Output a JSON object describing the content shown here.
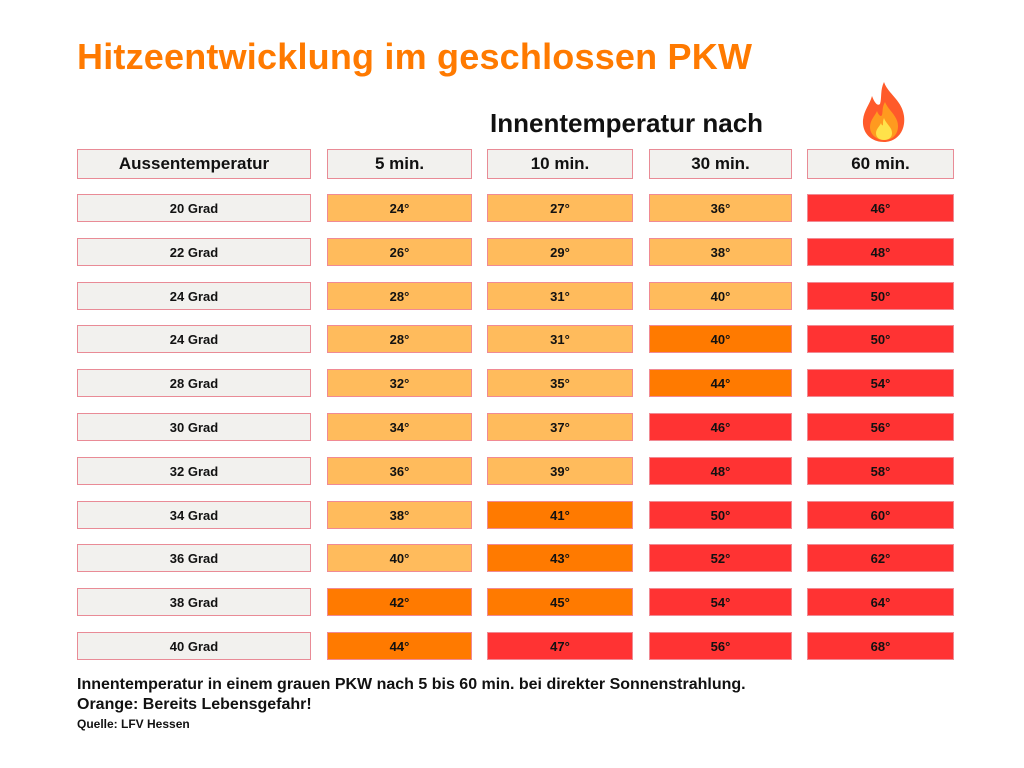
{
  "title": "Hitzeentwicklung im geschlossen PKW",
  "subheading": "Innentemperatur nach",
  "icon": "fire-icon",
  "colors": {
    "title": "#ff7a00",
    "light_orange": "#ffbb5c",
    "orange": "#ff7a00",
    "red": "#ff3333",
    "header_bg": "#f2f1ee",
    "border": "#e98b96"
  },
  "chart_data": {
    "type": "table",
    "title": "Hitzeentwicklung im geschlossen PKW",
    "column_group_label": "Innentemperatur nach",
    "row_header": "Aussentemperatur",
    "columns": [
      "5 min.",
      "10 min.",
      "30 min.",
      "60 min."
    ],
    "rows": [
      {
        "label": "20 Grad",
        "cells": [
          {
            "text": "24°",
            "level": "light"
          },
          {
            "text": "27°",
            "level": "light"
          },
          {
            "text": "36°",
            "level": "light"
          },
          {
            "text": "46°",
            "level": "red"
          }
        ]
      },
      {
        "label": "22 Grad",
        "cells": [
          {
            "text": "26°",
            "level": "light"
          },
          {
            "text": "29°",
            "level": "light"
          },
          {
            "text": "38°",
            "level": "light"
          },
          {
            "text": "48°",
            "level": "red"
          }
        ]
      },
      {
        "label": "24 Grad",
        "cells": [
          {
            "text": "28°",
            "level": "light"
          },
          {
            "text": "31°",
            "level": "light"
          },
          {
            "text": "40°",
            "level": "light"
          },
          {
            "text": "50°",
            "level": "red"
          }
        ]
      },
      {
        "label": "24 Grad",
        "cells": [
          {
            "text": "28°",
            "level": "light"
          },
          {
            "text": "31°",
            "level": "light"
          },
          {
            "text": "40°",
            "level": "orange"
          },
          {
            "text": "50°",
            "level": "red"
          }
        ]
      },
      {
        "label": "28 Grad",
        "cells": [
          {
            "text": "32°",
            "level": "light"
          },
          {
            "text": "35°",
            "level": "light"
          },
          {
            "text": "44°",
            "level": "orange"
          },
          {
            "text": "54°",
            "level": "red"
          }
        ]
      },
      {
        "label": "30 Grad",
        "cells": [
          {
            "text": "34°",
            "level": "light"
          },
          {
            "text": "37°",
            "level": "light"
          },
          {
            "text": "46°",
            "level": "red"
          },
          {
            "text": "56°",
            "level": "red"
          }
        ]
      },
      {
        "label": "32 Grad",
        "cells": [
          {
            "text": "36°",
            "level": "light"
          },
          {
            "text": "39°",
            "level": "light"
          },
          {
            "text": "48°",
            "level": "red"
          },
          {
            "text": "58°",
            "level": "red"
          }
        ]
      },
      {
        "label": "34 Grad",
        "cells": [
          {
            "text": "38°",
            "level": "light"
          },
          {
            "text": "41°",
            "level": "orange"
          },
          {
            "text": "50°",
            "level": "red"
          },
          {
            "text": "60°",
            "level": "red"
          }
        ]
      },
      {
        "label": "36 Grad",
        "cells": [
          {
            "text": "40°",
            "level": "light"
          },
          {
            "text": "43°",
            "level": "orange"
          },
          {
            "text": "52°",
            "level": "red"
          },
          {
            "text": "62°",
            "level": "red"
          }
        ]
      },
      {
        "label": "38 Grad",
        "cells": [
          {
            "text": "42°",
            "level": "orange"
          },
          {
            "text": "45°",
            "level": "orange"
          },
          {
            "text": "54°",
            "level": "red"
          },
          {
            "text": "64°",
            "level": "red"
          }
        ]
      },
      {
        "label": "40 Grad",
        "cells": [
          {
            "text": "44°",
            "level": "orange"
          },
          {
            "text": "47°",
            "level": "red"
          },
          {
            "text": "56°",
            "level": "red"
          },
          {
            "text": "68°",
            "level": "red"
          }
        ]
      }
    ]
  },
  "footer": {
    "line1": "Innentemperatur in einem grauen PKW nach 5 bis 60 min. bei direkter Sonnenstrahlung.",
    "line2": "Orange: Bereits Lebensgefahr!",
    "source": "Quelle: LFV Hessen"
  }
}
